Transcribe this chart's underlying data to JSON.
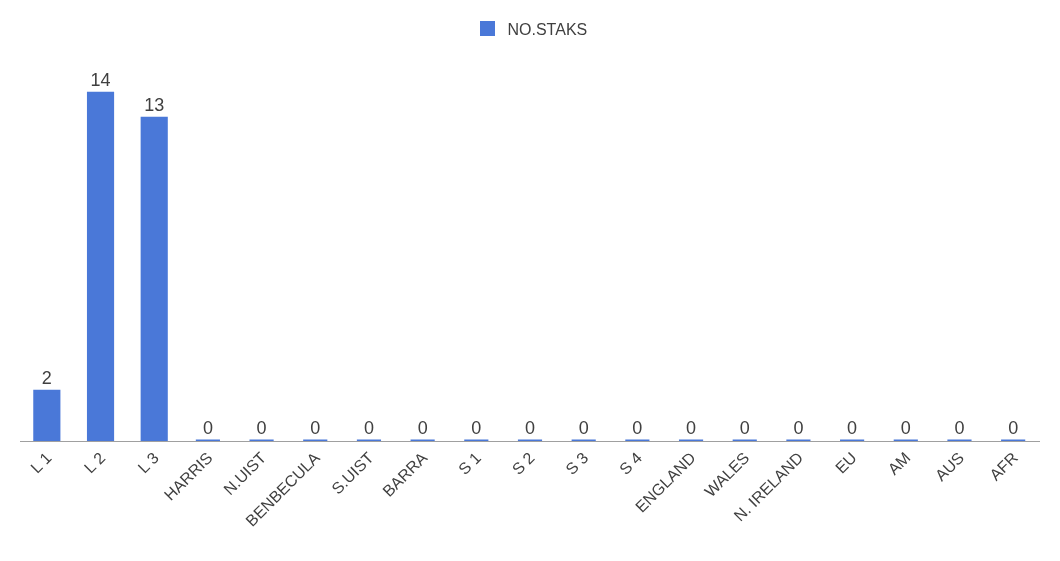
{
  "chart_data": {
    "type": "bar",
    "categories": [
      "L 1",
      "L 2",
      "L 3",
      "HARRIS",
      "N.UIST",
      "BENBECULA",
      "S.UIST",
      "BARRA",
      "S 1",
      "S 2",
      "S 3",
      "S 4",
      "ENGLAND",
      "WALES",
      "N. IRELAND",
      "EU",
      "AM",
      "AUS",
      "AFR"
    ],
    "series": [
      {
        "name": "NO.STAKS",
        "color": "#4a78d8",
        "values": [
          2,
          14,
          13,
          0,
          0,
          0,
          0,
          0,
          0,
          0,
          0,
          0,
          0,
          0,
          0,
          0,
          0,
          0,
          0
        ]
      }
    ],
    "data_labels": true,
    "legend": "top",
    "tick_labels": "x"
  }
}
